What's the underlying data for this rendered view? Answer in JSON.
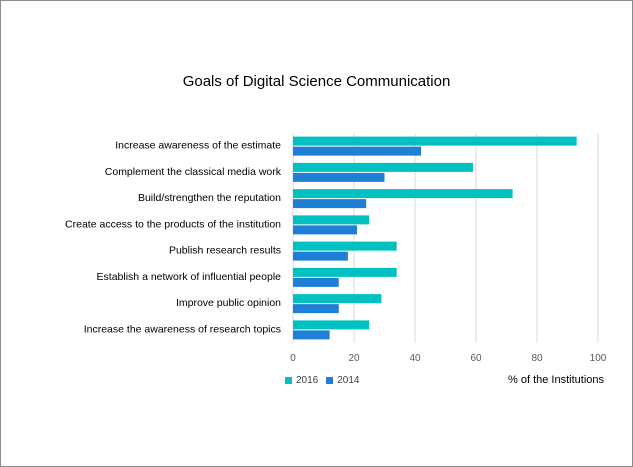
{
  "chart_data": {
    "type": "bar",
    "orientation": "horizontal",
    "title": "Goals of Digital Science Communication",
    "xlabel": "% of the Institutions",
    "xlim": [
      0,
      100
    ],
    "xticks": [
      "0",
      "20",
      "40",
      "60",
      "80",
      "100"
    ],
    "grid": true,
    "legend_position": "bottom-left",
    "categories": [
      "Increase awareness of the estimate",
      "Complement the classical media work",
      "Build/strengthen the reputation",
      "Create access to the products of the institution",
      "Publish research results",
      "Establish a network of influential people",
      "Improve public opinion",
      "Increase the awareness of research topics"
    ],
    "series": [
      {
        "name": "2016",
        "color": "#00c0c0",
        "values": [
          93,
          59,
          72,
          25,
          34,
          34,
          29,
          25
        ]
      },
      {
        "name": "2014",
        "color": "#1f7fd6",
        "values": [
          42,
          30,
          24,
          21,
          18,
          15,
          15,
          12
        ]
      }
    ]
  }
}
